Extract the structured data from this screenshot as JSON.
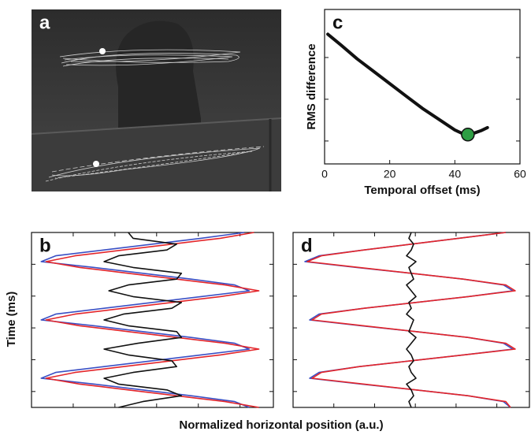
{
  "figure": {
    "y_label": "Time (ms)",
    "x_label": "Normalized horizontal position (a.u.)"
  },
  "chart_data": [
    {
      "type": "image",
      "label": "a"
    },
    {
      "type": "line",
      "label": "c",
      "xlabel": "Temporal offset (ms)",
      "ylabel": "RMS difference",
      "x": [
        1,
        5,
        10,
        15,
        20,
        25,
        30,
        35,
        40,
        42,
        44,
        46,
        48,
        50
      ],
      "values": [
        0.84,
        0.77,
        0.68,
        0.6,
        0.52,
        0.44,
        0.36,
        0.29,
        0.22,
        0.2,
        0.19,
        0.2,
        0.215,
        0.235
      ],
      "color": "#111111",
      "xlim": [
        0,
        60
      ],
      "xticks": [
        0,
        20,
        40,
        60
      ],
      "ylim": [
        0,
        1
      ],
      "marker": {
        "x": 44,
        "y": 0.19,
        "color": "#2e9e44"
      }
    },
    {
      "type": "line",
      "orientation": "vertical",
      "label": "b",
      "xlim": [
        0,
        1
      ],
      "ylim": [
        0,
        300
      ],
      "times": [
        0,
        10,
        20,
        30,
        40,
        50,
        60,
        70,
        80,
        90,
        100,
        110,
        120,
        130,
        140,
        150,
        160,
        170,
        180,
        190,
        200,
        210,
        220,
        230,
        240,
        250,
        260,
        270,
        280,
        290,
        300
      ],
      "series": [
        {
          "color": "#3a4fc4",
          "values": [
            0.88,
            0.7,
            0.5,
            0.3,
            0.1,
            0.04,
            0.26,
            0.46,
            0.66,
            0.84,
            0.9,
            0.7,
            0.5,
            0.3,
            0.1,
            0.04,
            0.26,
            0.46,
            0.66,
            0.84,
            0.9,
            0.7,
            0.5,
            0.3,
            0.1,
            0.04,
            0.26,
            0.46,
            0.66,
            0.84,
            0.9
          ]
        },
        {
          "color": "#e3252a",
          "values": [
            0.92,
            0.78,
            0.58,
            0.38,
            0.18,
            0.06,
            0.2,
            0.4,
            0.6,
            0.8,
            0.94,
            0.78,
            0.58,
            0.38,
            0.18,
            0.06,
            0.2,
            0.4,
            0.6,
            0.8,
            0.94,
            0.78,
            0.58,
            0.38,
            0.18,
            0.06,
            0.2,
            0.4,
            0.6,
            0.8,
            0.94
          ]
        },
        {
          "color": "#111111",
          "values": [
            0.4,
            0.42,
            0.6,
            0.56,
            0.36,
            0.3,
            0.42,
            0.62,
            0.6,
            0.4,
            0.32,
            0.42,
            0.62,
            0.58,
            0.38,
            0.3,
            0.4,
            0.6,
            0.62,
            0.44,
            0.3,
            0.4,
            0.58,
            0.6,
            0.42,
            0.3,
            0.36,
            0.56,
            0.62,
            0.46,
            0.36
          ]
        }
      ]
    },
    {
      "type": "line",
      "orientation": "vertical",
      "label": "d",
      "xlim": [
        0,
        1
      ],
      "ylim": [
        0,
        300
      ],
      "times": [
        0,
        10,
        20,
        30,
        40,
        50,
        60,
        70,
        80,
        90,
        100,
        110,
        120,
        130,
        140,
        150,
        160,
        170,
        180,
        190,
        200,
        210,
        220,
        230,
        240,
        250,
        260,
        270,
        280,
        290,
        300
      ],
      "series": [
        {
          "color": "#3a4fc4",
          "values": [
            0.9,
            0.7,
            0.5,
            0.3,
            0.11,
            0.05,
            0.27,
            0.5,
            0.72,
            0.89,
            0.93,
            0.74,
            0.52,
            0.3,
            0.11,
            0.07,
            0.29,
            0.52,
            0.74,
            0.89,
            0.93,
            0.72,
            0.5,
            0.28,
            0.11,
            0.07,
            0.29,
            0.52,
            0.74,
            0.89,
            0.92
          ]
        },
        {
          "color": "#e3252a",
          "values": [
            0.9,
            0.7,
            0.5,
            0.3,
            0.12,
            0.06,
            0.28,
            0.5,
            0.72,
            0.9,
            0.94,
            0.74,
            0.52,
            0.3,
            0.12,
            0.08,
            0.3,
            0.52,
            0.74,
            0.9,
            0.94,
            0.72,
            0.5,
            0.28,
            0.12,
            0.08,
            0.3,
            0.52,
            0.74,
            0.9,
            0.92
          ]
        },
        {
          "color": "#111111",
          "values": [
            0.5,
            0.49,
            0.51,
            0.5,
            0.48,
            0.52,
            0.49,
            0.5,
            0.51,
            0.48,
            0.5,
            0.52,
            0.49,
            0.5,
            0.48,
            0.51,
            0.5,
            0.49,
            0.52,
            0.5,
            0.48,
            0.5,
            0.51,
            0.49,
            0.5,
            0.52,
            0.48,
            0.5,
            0.51,
            0.49,
            0.5
          ]
        }
      ]
    }
  ]
}
